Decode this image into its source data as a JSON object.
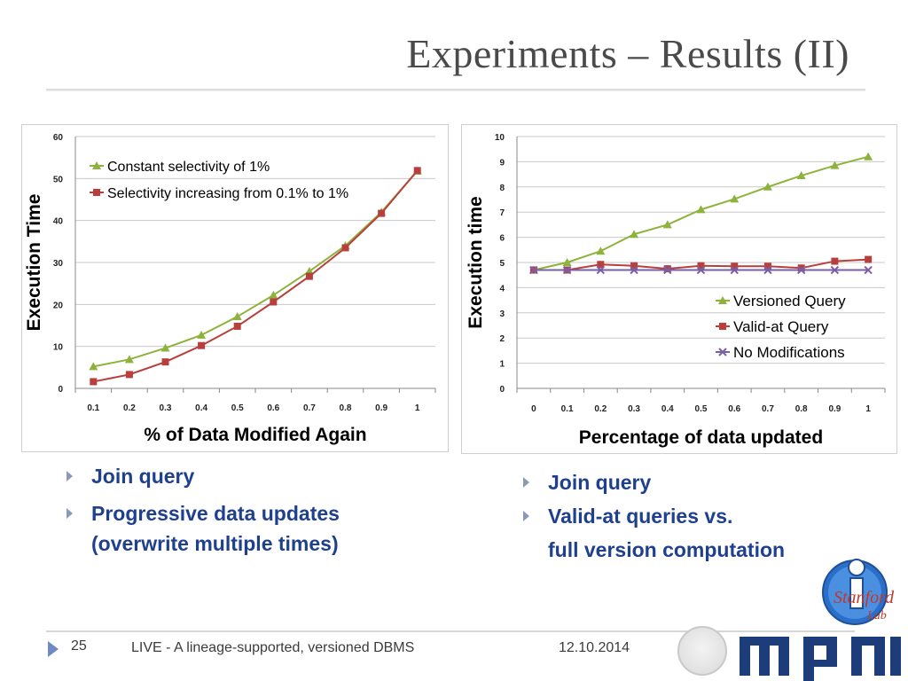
{
  "slide": {
    "title": "Experiments – Results (II)",
    "footer": {
      "page_number": "25",
      "text": "LIVE - A lineage-supported, versioned DBMS",
      "date": "12.10.2014"
    },
    "logo_text": "Stanford Lab"
  },
  "bullets_left": [
    "Join query",
    "Progressive data updates\n(overwrite multiple times)"
  ],
  "bullets_right": [
    "Join query",
    "Valid-at queries vs.\nfull version computation"
  ],
  "colors": {
    "green": "#8db33c",
    "red": "#b8403c",
    "purple": "#7b5fa6",
    "title": "#4a4a4a",
    "bullet": "#1f3f8f"
  },
  "chart_data": [
    {
      "type": "line",
      "title": "",
      "xlabel": "% of Data Modified Again",
      "ylabel": "Execution Time",
      "categories": [
        "0.1",
        "0.2",
        "0.3",
        "0.4",
        "0.5",
        "0.6",
        "0.7",
        "0.8",
        "0.9",
        "1"
      ],
      "ylim": [
        0,
        60
      ],
      "yticks": [
        0,
        10,
        20,
        30,
        40,
        50,
        60
      ],
      "grid": true,
      "legend": "top-left",
      "series": [
        {
          "name": "Constant selectivity of 1%",
          "color": "#8db33c",
          "marker": "triangle",
          "values": [
            5.2,
            6.9,
            9.6,
            12.7,
            17.1,
            22.2,
            27.9,
            34.0,
            42.0,
            51.8
          ]
        },
        {
          "name": "Selectivity increasing from 0.1% to 1%",
          "color": "#b8403c",
          "marker": "square",
          "values": [
            1.6,
            3.3,
            6.3,
            10.2,
            14.8,
            20.6,
            26.7,
            33.5,
            41.7,
            51.9
          ]
        }
      ]
    },
    {
      "type": "line",
      "title": "",
      "xlabel": "Percentage of data updated",
      "ylabel": "Execution time",
      "categories": [
        "0",
        "0.1",
        "0.2",
        "0.3",
        "0.4",
        "0.5",
        "0.6",
        "0.7",
        "0.8",
        "0.9",
        "1"
      ],
      "ylim": [
        0,
        10
      ],
      "yticks": [
        0,
        1,
        2,
        3,
        4,
        5,
        6,
        7,
        8,
        9,
        10
      ],
      "grid": true,
      "legend": "right",
      "series": [
        {
          "name": "Versioned Query",
          "color": "#8db33c",
          "marker": "triangle",
          "values": [
            4.7,
            5.0,
            5.45,
            6.12,
            6.5,
            7.1,
            7.52,
            8.0,
            8.45,
            8.85,
            9.2
          ]
        },
        {
          "name": "Valid-at Query",
          "color": "#b8403c",
          "marker": "square",
          "values": [
            4.7,
            4.7,
            4.92,
            4.87,
            4.75,
            4.87,
            4.85,
            4.85,
            4.78,
            5.05,
            5.12
          ]
        },
        {
          "name": "No Modifications",
          "color": "#7b5fa6",
          "marker": "x",
          "values": [
            4.7,
            4.7,
            4.7,
            4.7,
            4.7,
            4.7,
            4.7,
            4.7,
            4.7,
            4.7,
            4.7
          ]
        }
      ]
    }
  ]
}
